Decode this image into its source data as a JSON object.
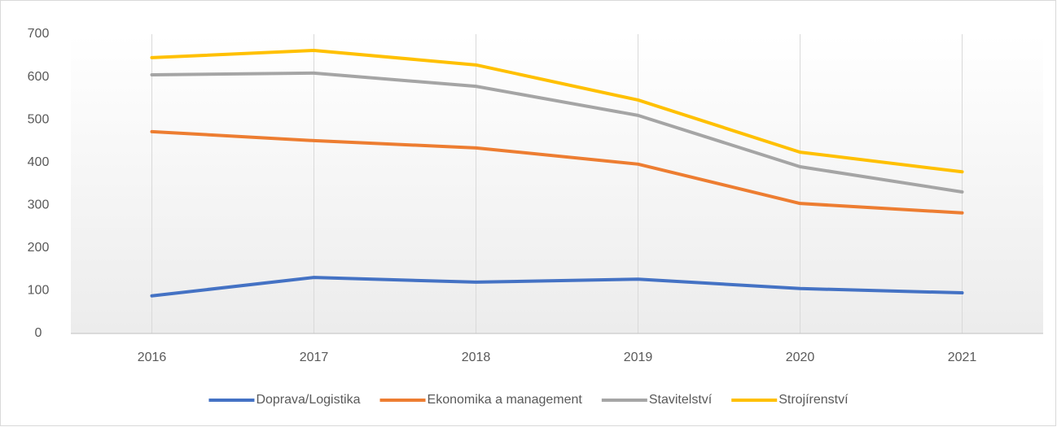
{
  "chart_data": {
    "type": "line",
    "categories": [
      "2016",
      "2017",
      "2018",
      "2019",
      "2020",
      "2021"
    ],
    "series": [
      {
        "name": "Doprava/Logistika",
        "color": "#4472c4",
        "values": [
          88,
          131,
          120,
          127,
          105,
          95
        ]
      },
      {
        "name": "Ekonomika a management",
        "color": "#ed7d31",
        "values": [
          472,
          451,
          434,
          396,
          304,
          282
        ]
      },
      {
        "name": "Stavitelství",
        "color": "#a5a5a5",
        "values": [
          605,
          609,
          578,
          510,
          390,
          331
        ]
      },
      {
        "name": "Strojírenství",
        "color": "#ffc000",
        "values": [
          645,
          662,
          628,
          546,
          424,
          378
        ]
      }
    ],
    "ylim": [
      0,
      700
    ],
    "yticks": [
      0,
      100,
      200,
      300,
      400,
      500,
      600,
      700
    ],
    "xgrid": true,
    "legend": "bottom"
  }
}
